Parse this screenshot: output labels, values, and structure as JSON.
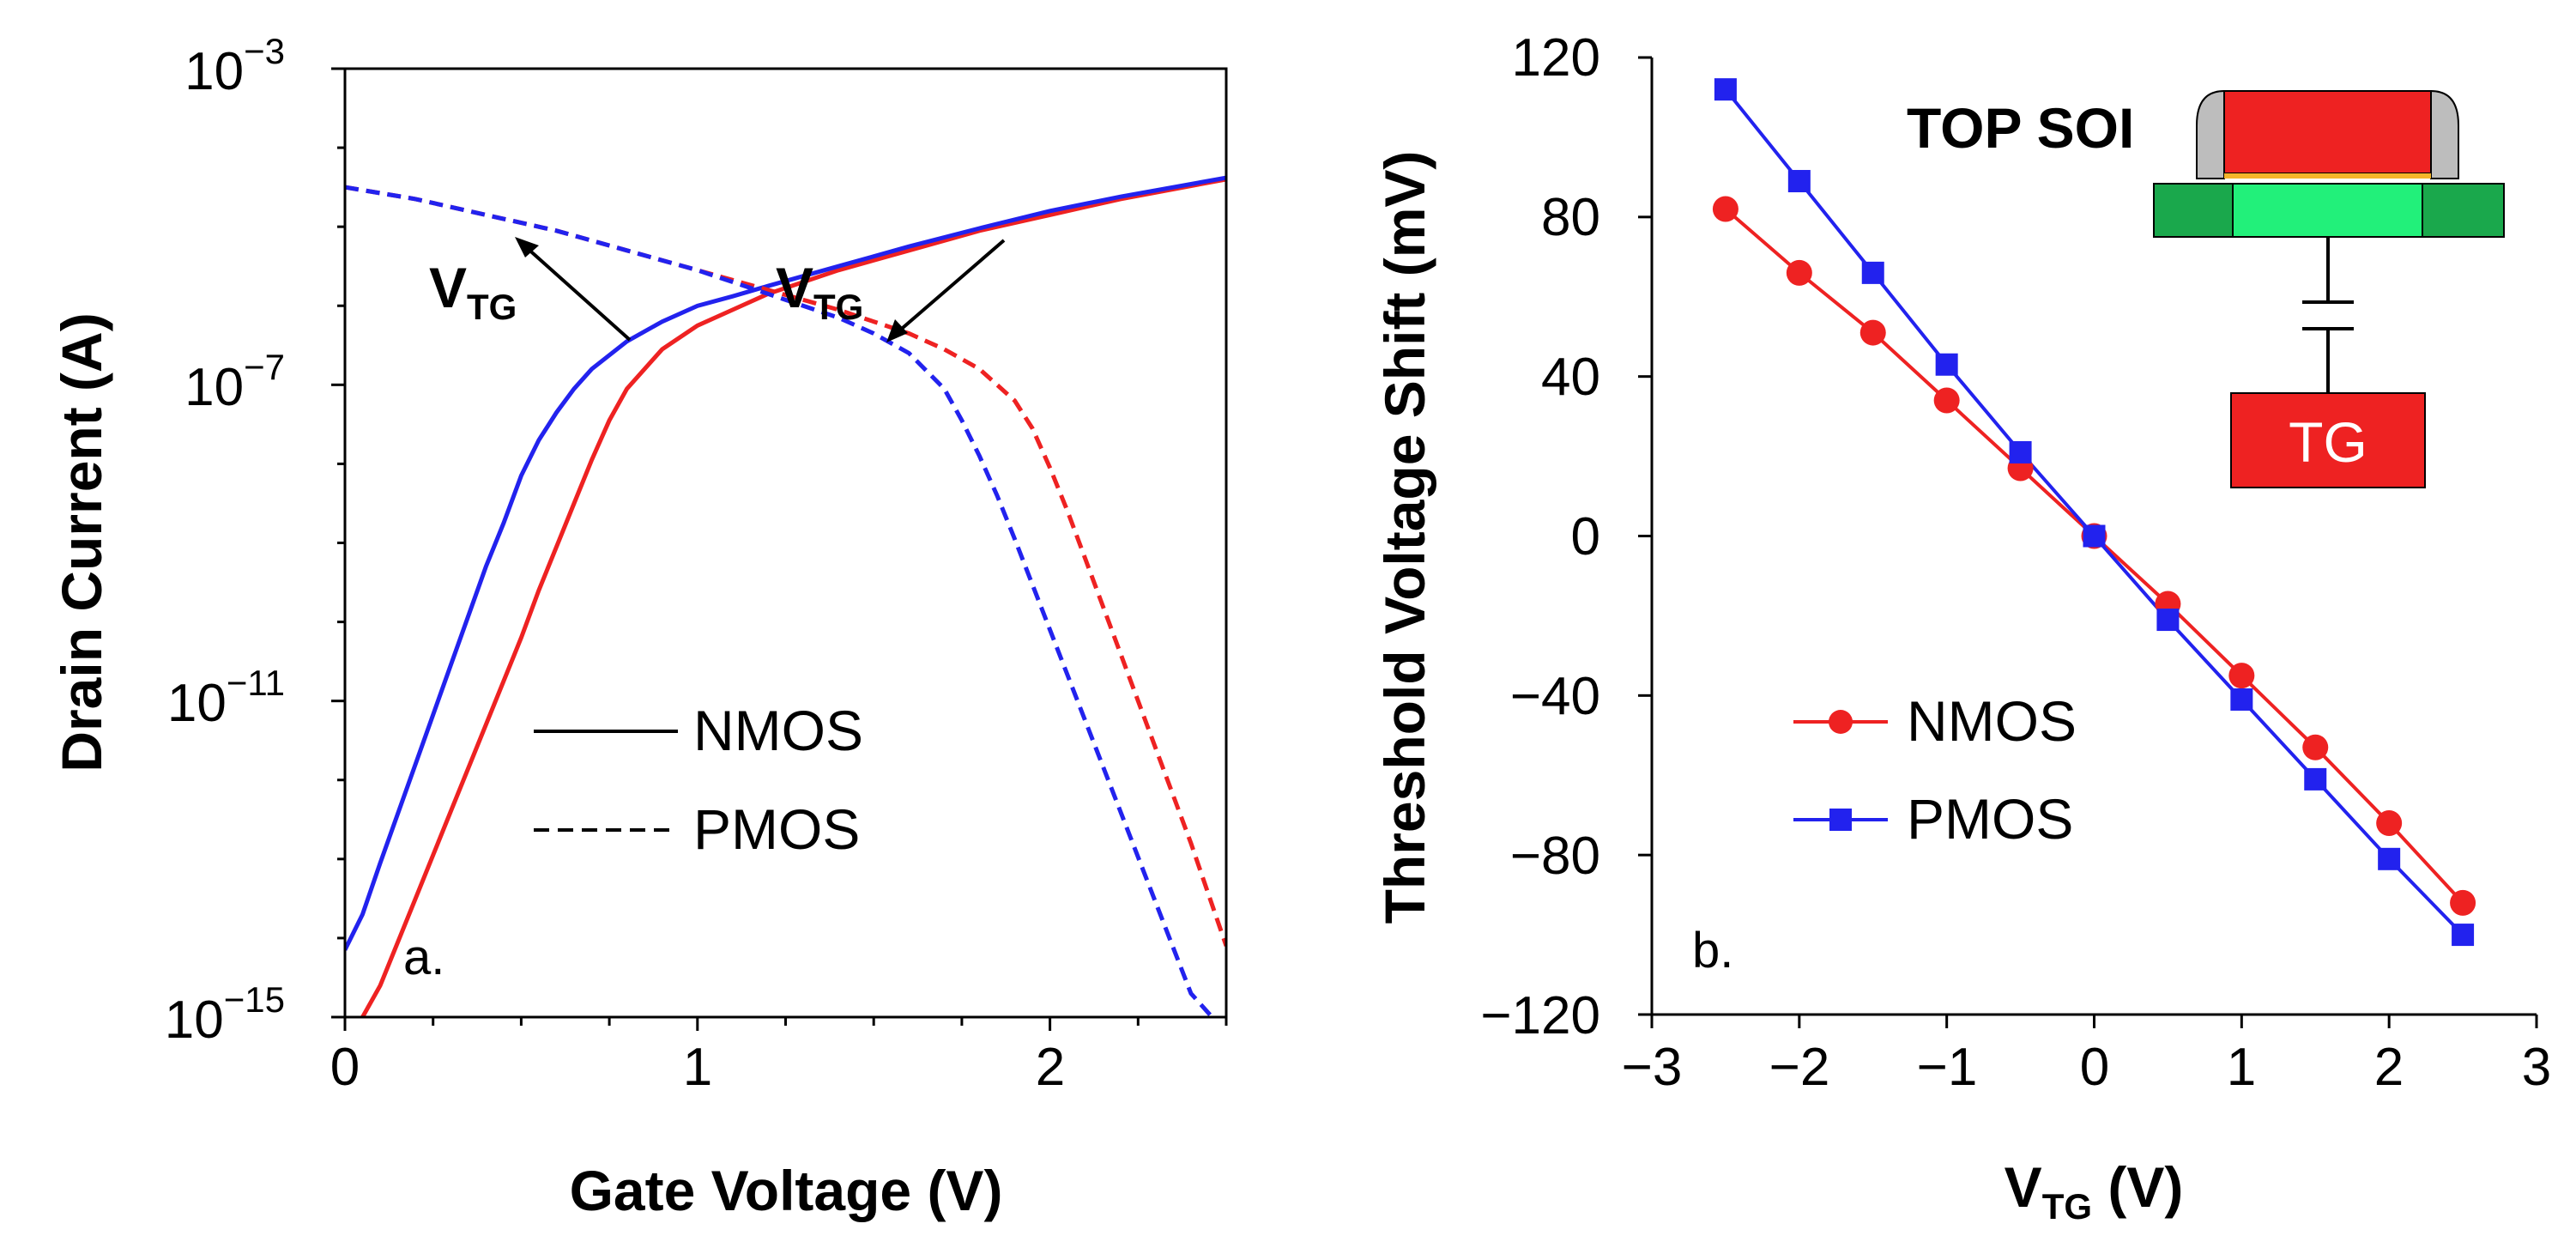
{
  "colors": {
    "nmos": "#ee2222",
    "pmos": "#2222ee",
    "axis": "#000000",
    "gate": "#ee2222",
    "soi_dark": "#1aa84c",
    "soi_light": "#22f07a",
    "spacer": "#bdbdbd"
  },
  "chart_data": [
    {
      "panel": "a.",
      "type": "line",
      "yscale": "log",
      "xlabel": "Gate Voltage (V)",
      "ylabel": "Drain Current (A)",
      "xlim": [
        0,
        2.5
      ],
      "ylim_exp": [
        -15,
        -3
      ],
      "xticks": [
        "0",
        "1",
        "2"
      ],
      "yticks": [
        {
          "base": "10",
          "exp": "−15",
          "value": -15
        },
        {
          "base": "10",
          "exp": "−11",
          "value": -11
        },
        {
          "base": "10",
          "exp": "−7",
          "value": -7
        },
        {
          "base": "10",
          "exp": "−3",
          "value": -3
        }
      ],
      "legend": [
        {
          "name": "NMOS",
          "style": "solid"
        },
        {
          "name": "PMOS",
          "style": "dashed"
        }
      ],
      "annotations": [
        {
          "base": "V",
          "sub": "TG"
        },
        {
          "base": "V",
          "sub": "TG"
        }
      ],
      "series": [
        {
          "name": "NMOS",
          "style": "solid",
          "color": "nmos",
          "x": [
            0.05,
            0.1,
            0.2,
            0.3,
            0.4,
            0.5,
            0.55,
            0.6,
            0.65,
            0.7,
            0.75,
            0.8,
            0.9,
            1.0,
            1.1,
            1.2,
            1.4,
            1.6,
            1.8,
            2.0,
            2.2,
            2.5
          ],
          "log10y": [
            -15,
            -14.6,
            -13.5,
            -12.4,
            -11.3,
            -10.2,
            -9.6,
            -9.05,
            -8.5,
            -7.95,
            -7.45,
            -7.05,
            -6.55,
            -6.25,
            -6.05,
            -5.85,
            -5.55,
            -5.3,
            -5.05,
            -4.85,
            -4.65,
            -4.4
          ]
        },
        {
          "name": "NMOS",
          "style": "solid",
          "color": "pmos",
          "x": [
            0,
            0.05,
            0.1,
            0.2,
            0.3,
            0.4,
            0.45,
            0.5,
            0.55,
            0.6,
            0.65,
            0.7,
            0.8,
            0.9,
            1.0,
            1.1,
            1.2,
            1.4,
            1.6,
            1.8,
            2.0,
            2.2,
            2.5
          ],
          "log10y": [
            -14.15,
            -13.7,
            -13.05,
            -11.8,
            -10.55,
            -9.3,
            -8.75,
            -8.15,
            -7.7,
            -7.35,
            -7.05,
            -6.8,
            -6.45,
            -6.2,
            -6.0,
            -5.88,
            -5.75,
            -5.5,
            -5.25,
            -5.02,
            -4.8,
            -4.62,
            -4.38
          ]
        },
        {
          "name": "PMOS",
          "style": "dashed",
          "color": "nmos",
          "x": [
            0,
            0.2,
            0.4,
            0.6,
            0.8,
            1.0,
            1.2,
            1.4,
            1.6,
            1.7,
            1.8,
            1.9,
            1.95,
            2.0,
            2.05,
            2.1,
            2.2,
            2.3,
            2.4,
            2.5
          ],
          "log10y": [
            -4.5,
            -4.65,
            -4.85,
            -5.05,
            -5.3,
            -5.55,
            -5.8,
            -6.05,
            -6.35,
            -6.55,
            -6.8,
            -7.2,
            -7.55,
            -8.05,
            -8.6,
            -9.2,
            -10.4,
            -11.6,
            -12.8,
            -14.1
          ]
        },
        {
          "name": "PMOS",
          "style": "dashed",
          "color": "pmos",
          "x": [
            0,
            0.2,
            0.4,
            0.6,
            0.8,
            1.0,
            1.2,
            1.4,
            1.5,
            1.6,
            1.7,
            1.75,
            1.8,
            1.85,
            1.9,
            2.0,
            2.1,
            2.2,
            2.3,
            2.4,
            2.5
          ],
          "log10y": [
            -4.5,
            -4.65,
            -4.85,
            -5.05,
            -5.3,
            -5.55,
            -5.85,
            -6.15,
            -6.35,
            -6.6,
            -7.05,
            -7.45,
            -7.9,
            -8.4,
            -8.95,
            -10.1,
            -11.25,
            -12.4,
            -13.55,
            -14.7,
            -15.2
          ]
        }
      ]
    },
    {
      "panel": "b.",
      "type": "line",
      "xlabel_base": "V",
      "xlabel_sub": "TG",
      "xlabel_unit": " (V)",
      "ylabel": "Threshold Voltage Shift (mV)",
      "xlim": [
        -3,
        3
      ],
      "ylim": [
        -120,
        120
      ],
      "xticks": [
        "−3",
        "−2",
        "−1",
        "0",
        "1",
        "2",
        "3"
      ],
      "xtick_values": [
        -3,
        -2,
        -1,
        0,
        1,
        2,
        3
      ],
      "yticks": [
        "−120",
        "−80",
        "−40",
        "0",
        "40",
        "80",
        "120"
      ],
      "ytick_values": [
        -120,
        -80,
        -40,
        0,
        40,
        80,
        120
      ],
      "legend": [
        {
          "name": "NMOS",
          "marker": "circle"
        },
        {
          "name": "PMOS",
          "marker": "square"
        }
      ],
      "series": [
        {
          "name": "NMOS",
          "marker": "circle",
          "color": "nmos",
          "x": [
            -2.5,
            -2.0,
            -1.5,
            -1.0,
            -0.5,
            0,
            0.5,
            1.0,
            1.5,
            2.0,
            2.5
          ],
          "y": [
            82,
            66,
            51,
            34,
            17,
            0,
            -17,
            -35,
            -53,
            -72,
            -92
          ]
        },
        {
          "name": "PMOS",
          "marker": "square",
          "color": "pmos",
          "x": [
            -2.5,
            -2.0,
            -1.5,
            -1.0,
            -0.5,
            0,
            0.5,
            1.0,
            1.5,
            2.0,
            2.5
          ],
          "y": [
            112,
            89,
            66,
            43,
            21,
            0,
            -21,
            -41,
            -61,
            -81,
            -100
          ]
        }
      ],
      "inset": {
        "title": "TOP SOI",
        "gate_label": "TG"
      }
    }
  ]
}
